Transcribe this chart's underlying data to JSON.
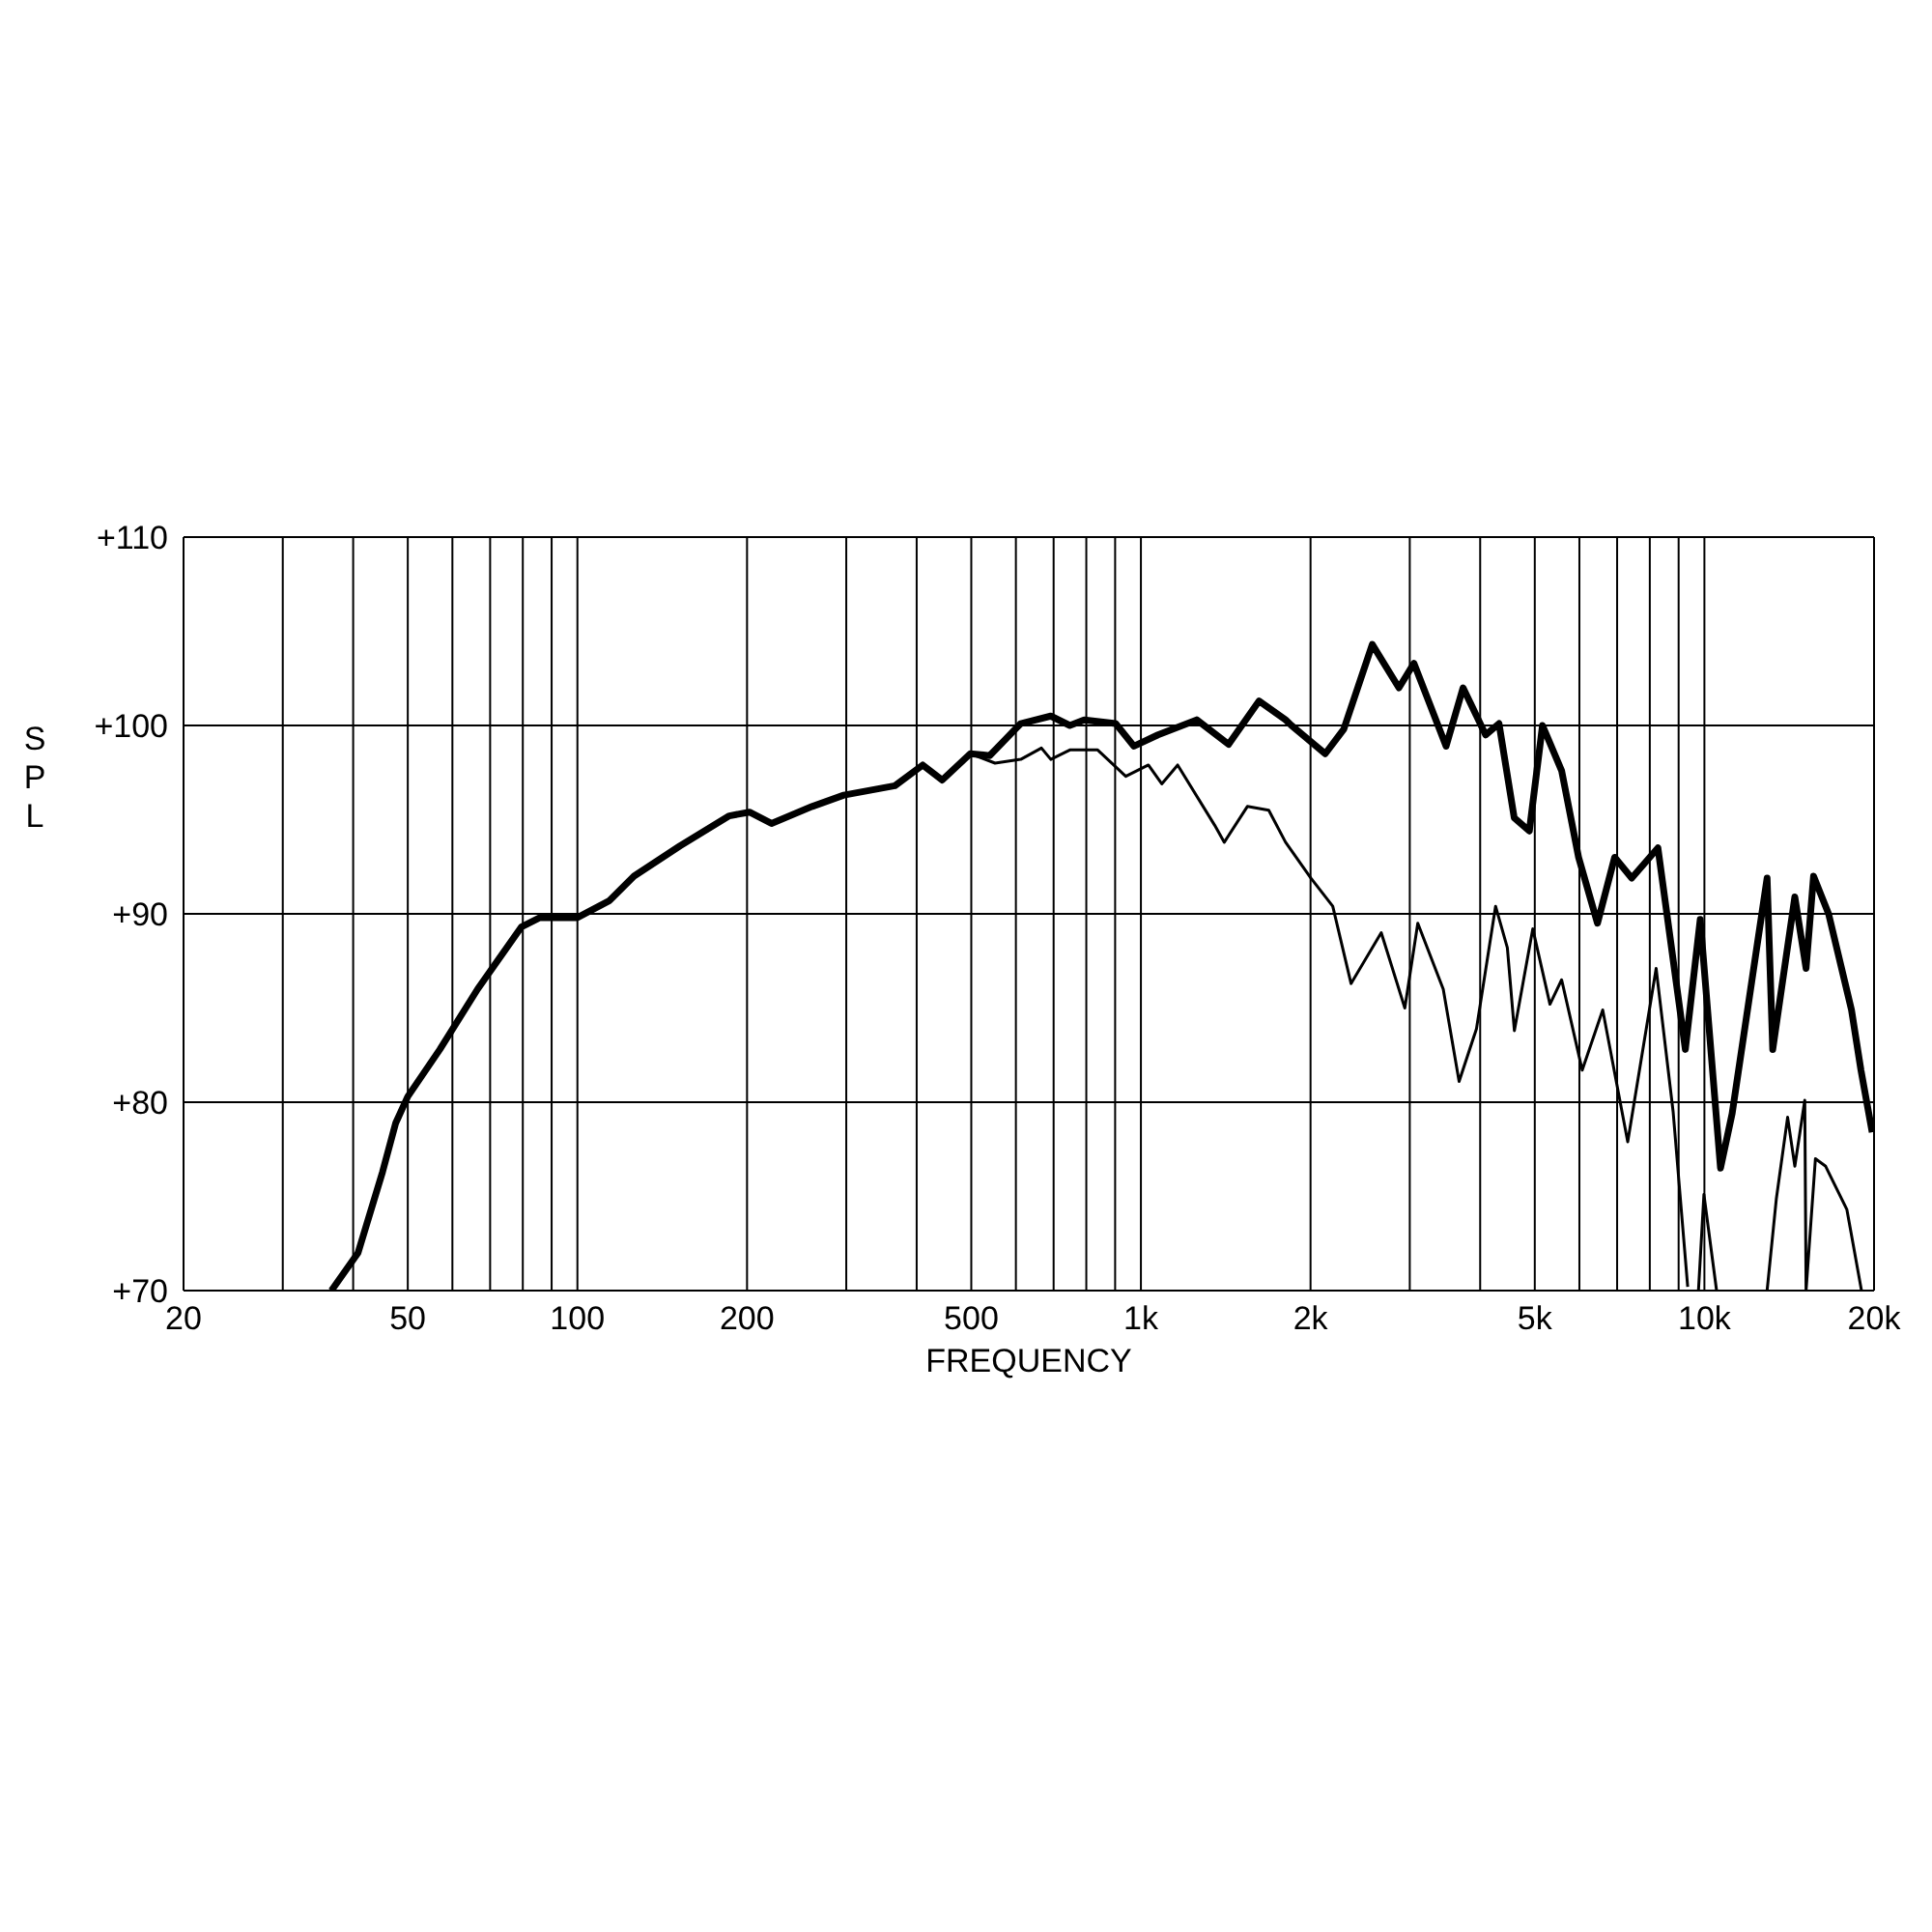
{
  "chart_data": {
    "type": "line",
    "xlabel": "FREQUENCY",
    "ylabel": "SPL",
    "log": "x",
    "grid": true,
    "marker": "none",
    "line_style": "solid",
    "xlim": [
      20,
      20000
    ],
    "ylim": [
      70,
      110
    ],
    "xticks": [
      20,
      {
        "value": 30,
        "label": null
      },
      {
        "value": 40,
        "label": null
      },
      50,
      {
        "value": 60,
        "label": null
      },
      {
        "value": 70,
        "label": null
      },
      {
        "value": 80,
        "label": null
      },
      {
        "value": 90,
        "label": null
      },
      100,
      200,
      {
        "value": 300,
        "label": null
      },
      {
        "value": 400,
        "label": null
      },
      500,
      {
        "value": 600,
        "label": null
      },
      {
        "value": 700,
        "label": null
      },
      {
        "value": 800,
        "label": null
      },
      {
        "value": 900,
        "label": null
      },
      {
        "value": 1000,
        "label": "1k"
      },
      {
        "value": 2000,
        "label": "2k"
      },
      {
        "value": 3000,
        "label": null
      },
      {
        "value": 4000,
        "label": null
      },
      {
        "value": 5000,
        "label": "5k"
      },
      {
        "value": 6000,
        "label": null
      },
      {
        "value": 7000,
        "label": null
      },
      {
        "value": 8000,
        "label": null
      },
      {
        "value": 9000,
        "label": null
      },
      {
        "value": 10000,
        "label": "10k"
      },
      {
        "value": 20000,
        "label": "20k"
      }
    ],
    "yticks": [
      {
        "value": 70,
        "label": "+70"
      },
      {
        "value": 80,
        "label": "+80"
      },
      {
        "value": 90,
        "label": "+90"
      },
      {
        "value": 100,
        "label": "+100"
      },
      {
        "value": 110,
        "label": "+110"
      }
    ],
    "series": [
      {
        "color": "#000000",
        "x": [
          36.6,
          40.8,
          45.1,
          47.6,
          50,
          57,
          66.5,
          79.5,
          85.8,
          100,
          114,
          126,
          152,
          186,
          202,
          221,
          261,
          297,
          366,
          410,
          444,
          498,
          539,
          612,
          692,
          748,
          793,
          902,
          972,
          1072,
          1256,
          1431,
          1620,
          1806,
          1850,
          2124,
          2291,
          2574,
          2870,
          3052,
          3480,
          3730,
          4090,
          4320,
          4597,
          4890,
          5160,
          5580,
          5980,
          6460,
          6930,
          7430,
          8270,
          9250,
          9830,
          10680,
          11200,
          12920,
          13220,
          14470,
          15150,
          15620,
          16610,
          18240,
          18960,
          19850
        ],
        "values": [
          70,
          72,
          76.3,
          78.9,
          80.3,
          82.8,
          86,
          89.3,
          89.8,
          89.8,
          90.7,
          92,
          93.6,
          95.2,
          95.4,
          94.8,
          95.7,
          96.3,
          96.8,
          97.9,
          97.1,
          98.5,
          98.4,
          100.1,
          100.5,
          100,
          100.3,
          100.1,
          98.9,
          99.5,
          100.3,
          99,
          101.3,
          100.3,
          100,
          98.5,
          99.8,
          104.3,
          102,
          103.3,
          98.9,
          102,
          99.5,
          100.1,
          95.1,
          94.4,
          100,
          97.6,
          93,
          89.5,
          93,
          91.9,
          93.5,
          82.8,
          89.7,
          76.5,
          79.4,
          91.9,
          82.8,
          90.9,
          87.1,
          92,
          90,
          84.9,
          81.7,
          78.4
        ]
      },
      {
        "color": "#000000",
        "x": [
          498,
          551,
          612,
          666,
          692,
          748,
          838,
          940,
          1031,
          1089,
          1162,
          1352,
          1406,
          1545,
          1686,
          1806,
          2002,
          2190,
          2360,
          2670,
          2940,
          3100,
          3440,
          3670,
          3940,
          4260,
          4470,
          4600,
          4960,
          5320,
          5580,
          6070,
          6600,
          7310,
          8210,
          8800,
          9340,
          9500,
          9760,
          9980,
          10510,
          11500,
          12920,
          13420,
          14050,
          14470,
          15070,
          15150,
          15740,
          16410,
          17900,
          19000
        ],
        "values": [
          98.5,
          98,
          98.2,
          98.8,
          98.2,
          98.7,
          98.7,
          97.3,
          97.9,
          96.9,
          97.9,
          94.7,
          93.8,
          95.7,
          95.5,
          93.8,
          91.9,
          90.4,
          86.3,
          89,
          85,
          89.5,
          86,
          81.1,
          83.9,
          90.4,
          88.2,
          83.8,
          89.2,
          85.2,
          86.5,
          81.7,
          84.9,
          77.9,
          87.1,
          79.5,
          70.2,
          null,
          70,
          75.1,
          70,
          null,
          70,
          74.9,
          79.2,
          76.6,
          80.1,
          70,
          77,
          76.6,
          74.3,
          70
        ]
      }
    ]
  }
}
